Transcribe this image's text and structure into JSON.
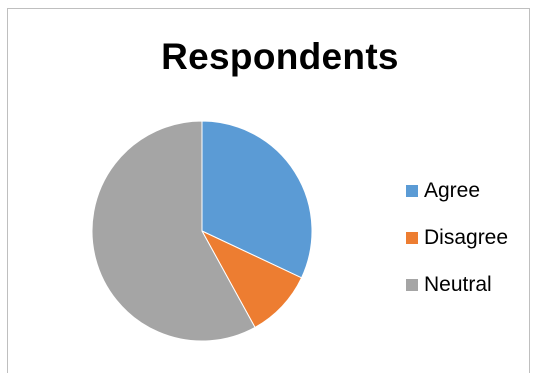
{
  "chart_data": {
    "type": "pie",
    "title": "Respondents",
    "categories": [
      "Agree",
      "Disagree",
      "Neutral"
    ],
    "values": [
      32,
      10,
      58
    ],
    "colors": [
      "#5b9bd5",
      "#ed7d31",
      "#a5a5a5"
    ],
    "legend_position": "right"
  }
}
